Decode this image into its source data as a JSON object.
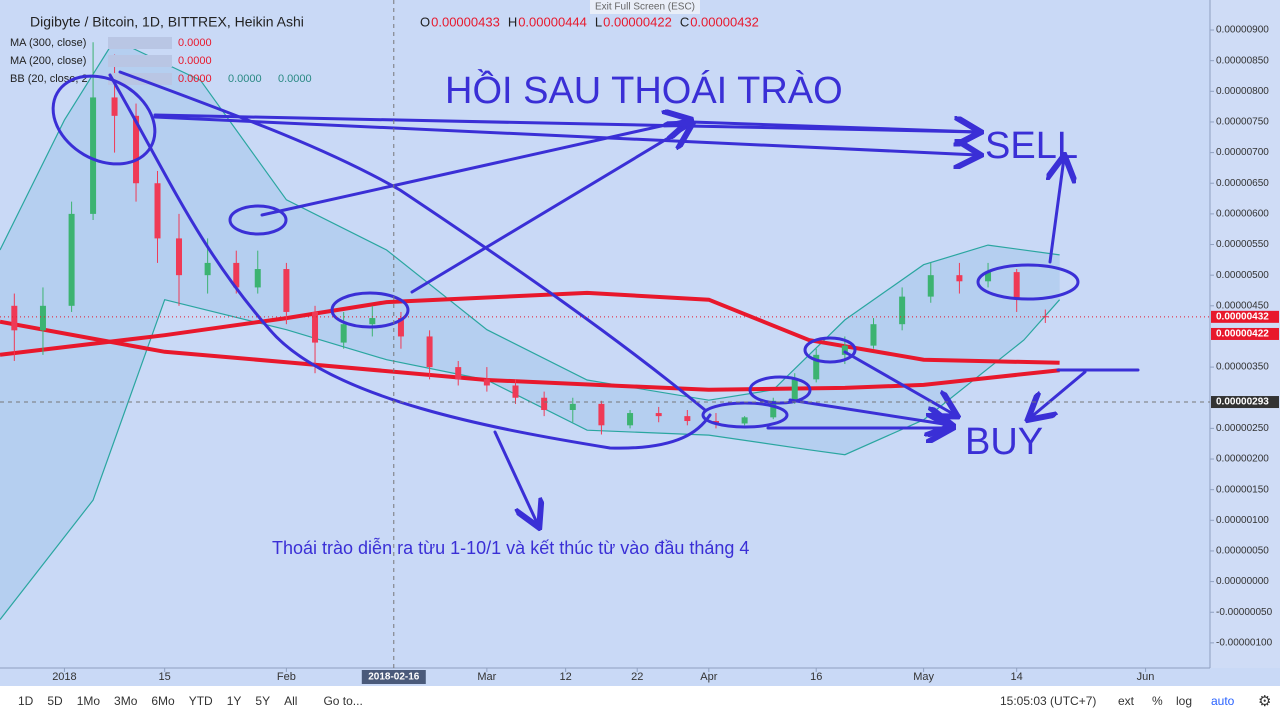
{
  "banner": "Exit Full Screen (ESC)",
  "header": {
    "title": "Digibyte / Bitcoin, 1D, BITTREX, Heikin Ashi",
    "ohlc": [
      {
        "label": "O",
        "value": "0.00000433"
      },
      {
        "label": "H",
        "value": "0.00000444"
      },
      {
        "label": "L",
        "value": "0.00000422"
      },
      {
        "label": "C",
        "value": "0.00000432"
      }
    ]
  },
  "chart_data": {
    "type": "candlestick",
    "xlim": [
      "2017-12-23",
      "2018-06-10"
    ],
    "xticks": [
      {
        "value": "2018-01-01",
        "label": "2018"
      },
      {
        "value": "2018-01-15",
        "label": "15"
      },
      {
        "value": "2018-02-01",
        "label": "Feb"
      },
      {
        "value": "2018-03-01",
        "label": "Mar"
      },
      {
        "value": "2018-03-12",
        "label": "12"
      },
      {
        "value": "2018-03-22",
        "label": "22"
      },
      {
        "value": "2018-04-01",
        "label": "Apr"
      },
      {
        "value": "2018-04-16",
        "label": "16"
      },
      {
        "value": "2018-05-01",
        "label": "May"
      },
      {
        "value": "2018-05-14",
        "label": "14"
      },
      {
        "value": "2018-06-01",
        "label": "Jun"
      }
    ],
    "crosshair_x": "2018-02-16",
    "ylim": [
      -1.41e-06,
      9.49e-06
    ],
    "yticks": [
      {
        "value": 9e-06,
        "label": "0.00000900"
      },
      {
        "value": 8.5e-06,
        "label": "0.00000850"
      },
      {
        "value": 8e-06,
        "label": "0.00000800"
      },
      {
        "value": 7.5e-06,
        "label": "0.00000750"
      },
      {
        "value": 7e-06,
        "label": "0.00000700"
      },
      {
        "value": 6.5e-06,
        "label": "0.00000650"
      },
      {
        "value": 6e-06,
        "label": "0.00000600"
      },
      {
        "value": 5.5e-06,
        "label": "0.00000550"
      },
      {
        "value": 5e-06,
        "label": "0.00000500"
      },
      {
        "value": 4.5e-06,
        "label": "0.00000450"
      },
      {
        "value": 3.5e-06,
        "label": "0.00000350"
      },
      {
        "value": 2.5e-06,
        "label": "0.00000250"
      },
      {
        "value": 2e-06,
        "label": "0.00000200"
      },
      {
        "value": 1.5e-06,
        "label": "0.00000150"
      },
      {
        "value": 1e-06,
        "label": "0.00000100"
      },
      {
        "value": 5e-07,
        "label": "0.00000050"
      },
      {
        "value": 0,
        "label": "0.00000000"
      },
      {
        "value": -5e-07,
        "label": "-0.00000050"
      },
      {
        "value": -1e-06,
        "label": "-0.00000100"
      }
    ],
    "price_tags": [
      {
        "value": 4.32e-06,
        "label": "0.00000432",
        "color": "#e8182c"
      },
      {
        "value": 4.22e-06,
        "label": "0.00000422",
        "color": "#e8182c"
      },
      {
        "value": 2.93e-06,
        "label": "0.00000293",
        "color": "#333333"
      }
    ],
    "up_color": "#3cb371",
    "down_color": "#ef3a56",
    "x": [
      "2017-12-25",
      "2017-12-29",
      "2018-01-02",
      "2018-01-05",
      "2018-01-08",
      "2018-01-11",
      "2018-01-14",
      "2018-01-17",
      "2018-01-21",
      "2018-01-25",
      "2018-01-28",
      "2018-02-01",
      "2018-02-05",
      "2018-02-09",
      "2018-02-13",
      "2018-02-17",
      "2018-02-21",
      "2018-02-25",
      "2018-03-01",
      "2018-03-05",
      "2018-03-09",
      "2018-03-13",
      "2018-03-17",
      "2018-03-21",
      "2018-03-25",
      "2018-03-29",
      "2018-04-02",
      "2018-04-06",
      "2018-04-10",
      "2018-04-13",
      "2018-04-16",
      "2018-04-20",
      "2018-04-24",
      "2018-04-28",
      "2018-05-02",
      "2018-05-06",
      "2018-05-10",
      "2018-05-14",
      "2018-05-18"
    ],
    "open": [
      4.5e-06,
      4.1e-06,
      4.5e-06,
      6e-06,
      7.9e-06,
      7.6e-06,
      6.5e-06,
      5.6e-06,
      5e-06,
      5.2e-06,
      4.8e-06,
      5.1e-06,
      4.4e-06,
      3.9e-06,
      4.2e-06,
      4.3e-06,
      4e-06,
      3.5e-06,
      3.3e-06,
      3.2e-06,
      3e-06,
      2.8e-06,
      2.9e-06,
      2.55e-06,
      2.75e-06,
      2.7e-06,
      2.62e-06,
      2.58e-06,
      2.68e-06,
      2.95e-06,
      3.3e-06,
      3.7e-06,
      3.85e-06,
      4.2e-06,
      4.65e-06,
      5e-06,
      4.9e-06,
      5.05e-06,
      4.33e-06
    ],
    "high": [
      4.7e-06,
      4.8e-06,
      6.2e-06,
      8.8e-06,
      8.6e-06,
      7.8e-06,
      6.7e-06,
      6e-06,
      5.6e-06,
      5.4e-06,
      5.4e-06,
      5.2e-06,
      4.5e-06,
      4.4e-06,
      4.5e-06,
      4.4e-06,
      4.1e-06,
      3.6e-06,
      3.5e-06,
      3.3e-06,
      3.1e-06,
      3e-06,
      2.95e-06,
      2.8e-06,
      2.85e-06,
      2.8e-06,
      2.75e-06,
      2.7e-06,
      3e-06,
      3.4e-06,
      3.8e-06,
      4e-06,
      4.3e-06,
      4.8e-06,
      5.2e-06,
      5.2e-06,
      5.2e-06,
      5.1e-06,
      4.44e-06
    ],
    "low": [
      3.6e-06,
      3.7e-06,
      4.4e-06,
      5.9e-06,
      7e-06,
      6.2e-06,
      5.2e-06,
      4.5e-06,
      4.7e-06,
      4.7e-06,
      4.7e-06,
      4.2e-06,
      3.4e-06,
      3.8e-06,
      4e-06,
      3.8e-06,
      3.3e-06,
      3.2e-06,
      3.1e-06,
      2.9e-06,
      2.7e-06,
      2.6e-06,
      2.4e-06,
      2.5e-06,
      2.6e-06,
      2.55e-06,
      2.5e-06,
      2.55e-06,
      2.65e-06,
      2.9e-06,
      3.25e-06,
      3.55e-06,
      3.8e-06,
      4.1e-06,
      4.55e-06,
      4.7e-06,
      4.8e-06,
      4.4e-06,
      4.22e-06
    ],
    "close": [
      4.1e-06,
      4.5e-06,
      6e-06,
      7.9e-06,
      7.6e-06,
      6.5e-06,
      5.6e-06,
      5e-06,
      5.2e-06,
      4.8e-06,
      5.1e-06,
      4.4e-06,
      3.9e-06,
      4.2e-06,
      4.3e-06,
      4e-06,
      3.5e-06,
      3.3e-06,
      3.2e-06,
      3e-06,
      2.8e-06,
      2.9e-06,
      2.55e-06,
      2.75e-06,
      2.7e-06,
      2.62e-06,
      2.58e-06,
      2.68e-06,
      2.95e-06,
      3.3e-06,
      3.7e-06,
      3.85e-06,
      4.2e-06,
      4.65e-06,
      5e-06,
      4.9e-06,
      5.05e-06,
      4.6e-06,
      4.32e-06
    ],
    "series": [
      {
        "name": "MA (300, close)",
        "readout": "0.0000",
        "color": "#e8182c",
        "x": [
          "2017-12-23",
          "2018-01-15",
          "2018-02-01",
          "2018-03-01",
          "2018-04-01",
          "2018-04-20",
          "2018-05-01",
          "2018-05-20"
        ],
        "values": [
          4.24e-06,
          3.75e-06,
          3.58e-06,
          3.29e-06,
          3.13e-06,
          3.16e-06,
          3.21e-06,
          3.45e-06
        ]
      },
      {
        "name": "MA (200, close)",
        "readout": "0.0000",
        "color": "#e8182c",
        "x": [
          "2017-12-23",
          "2018-01-15",
          "2018-02-01",
          "2018-02-15",
          "2018-03-15",
          "2018-04-01",
          "2018-04-15",
          "2018-05-01",
          "2018-05-20"
        ],
        "values": [
          3.7e-06,
          4.02e-06,
          4.3e-06,
          4.56e-06,
          4.71e-06,
          4.6e-06,
          3.94e-06,
          3.62e-06,
          3.57e-06
        ]
      }
    ],
    "bollinger": {
      "name": "BB (20, close, 2",
      "readouts": [
        "0.0000",
        "0.0000",
        "0.0000"
      ],
      "color": "#2aa6a0",
      "upper": {
        "x": [
          "2017-12-23",
          "2018-01-01",
          "2018-01-08",
          "2018-01-20",
          "2018-02-01",
          "2018-02-15",
          "2018-03-01",
          "2018-03-15",
          "2018-04-01",
          "2018-04-10",
          "2018-04-20",
          "2018-05-01",
          "2018-05-10",
          "2018-05-20"
        ],
        "values": [
          5.41e-06,
          7.53e-06,
          8.84e-06,
          8.18e-06,
          6.23e-06,
          5.41e-06,
          4.11e-06,
          3.29e-06,
          2.96e-06,
          3.13e-06,
          4.27e-06,
          5.17e-06,
          5.49e-06,
          5.33e-06
        ]
      },
      "lower": {
        "x": [
          "2017-12-23",
          "2018-01-05",
          "2018-01-15",
          "2018-02-01",
          "2018-02-15",
          "2018-03-01",
          "2018-03-15",
          "2018-04-01",
          "2018-04-15",
          "2018-04-20",
          "2018-05-01",
          "2018-05-15",
          "2018-05-20"
        ],
        "values": [
          -6.2e-07,
          1.33e-06,
          4.6e-06,
          4.11e-06,
          3.62e-06,
          3.29e-06,
          2.47e-06,
          2.39e-06,
          2.15e-06,
          2.07e-06,
          2.64e-06,
          3.94e-06,
          4.6e-06
        ]
      }
    }
  },
  "annotations": {
    "headline": "HỒI SAU THOÁI TRÀO",
    "sell": "SELL",
    "buy": "BUY",
    "caption": "Thoái trào diễn ra từu 1-10/1 và kết thúc từ vào đầu tháng 4"
  },
  "toolbar": {
    "ranges": [
      "1D",
      "5D",
      "1Mo",
      "3Mo",
      "6Mo",
      "YTD",
      "1Y",
      "5Y",
      "All"
    ],
    "goto": "Go to...",
    "clock": "15:05:03 (UTC+7)",
    "options": [
      "ext",
      "%",
      "log",
      "auto"
    ]
  }
}
